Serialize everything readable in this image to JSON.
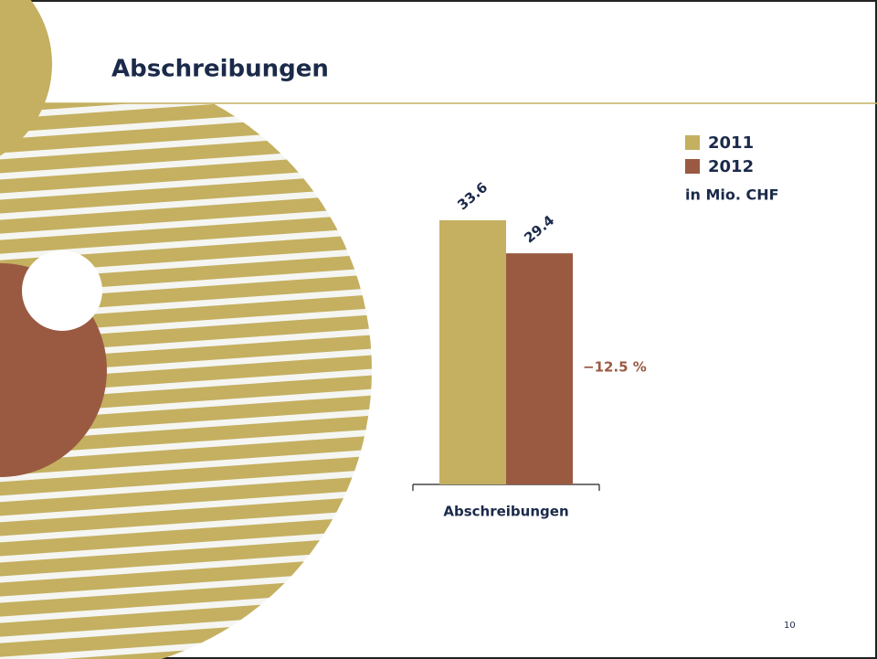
{
  "chart_data": {
    "type": "bar",
    "title": "Abschreibungen",
    "categories": [
      "Abschreibungen"
    ],
    "series": [
      {
        "name": "2011",
        "color": "#c4b060",
        "values": [
          33.6
        ]
      },
      {
        "name": "2012",
        "color": "#9a5a42",
        "values": [
          29.4
        ]
      }
    ],
    "unit_note": "in Mio. CHF",
    "change_label": "−12.5 %",
    "page_number": "10"
  }
}
